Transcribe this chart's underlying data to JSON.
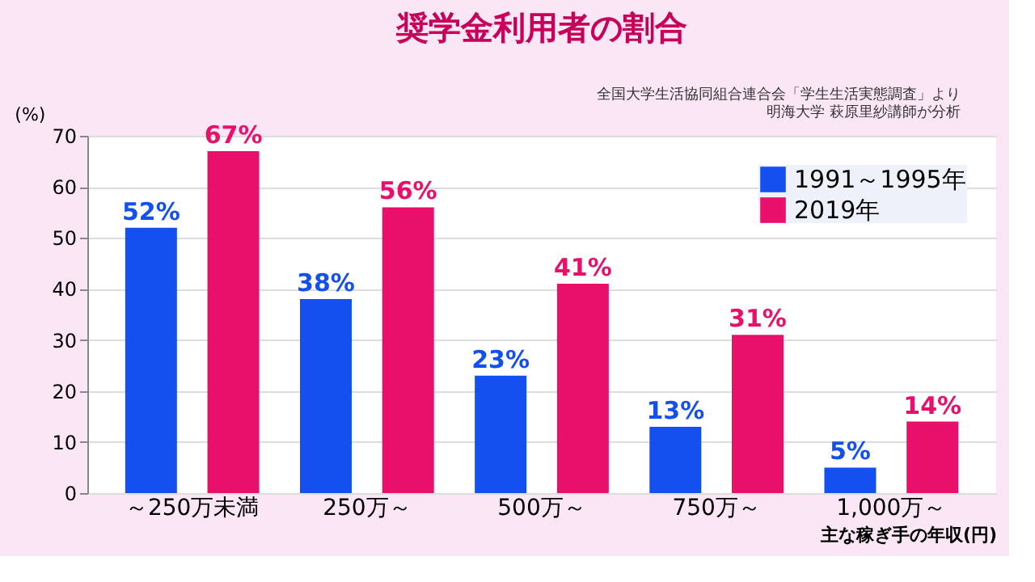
{
  "chart_data": {
    "type": "bar",
    "title": "奨学金利用者の割合",
    "xlabel": "主な稼ぎ手の年収(円)",
    "ylabel": "(%)",
    "annotations": [
      "全国大学生活協同組合連合会「学生生活実態調査」より",
      "明海大学 萩原里紗講師が分析"
    ],
    "categories": [
      "～250万未満",
      "250万～",
      "500万～",
      "750万～",
      "1,000万～"
    ],
    "series": [
      {
        "name": "1991～1995年",
        "color": "#1450f0",
        "values": [
          52,
          38,
          23,
          13,
          5
        ],
        "value_labels": [
          "52%",
          "38%",
          "23%",
          "13%",
          "5%"
        ]
      },
      {
        "name": "2019年",
        "color": "#e8106a",
        "values": [
          67,
          56,
          41,
          31,
          14
        ],
        "value_labels": [
          "67%",
          "56%",
          "41%",
          "31%",
          "14%"
        ]
      }
    ],
    "ylim": [
      0,
      70
    ],
    "yticks": [
      0,
      10,
      20,
      30,
      40,
      50,
      60,
      70
    ],
    "grid": "y",
    "legend": "top right"
  }
}
